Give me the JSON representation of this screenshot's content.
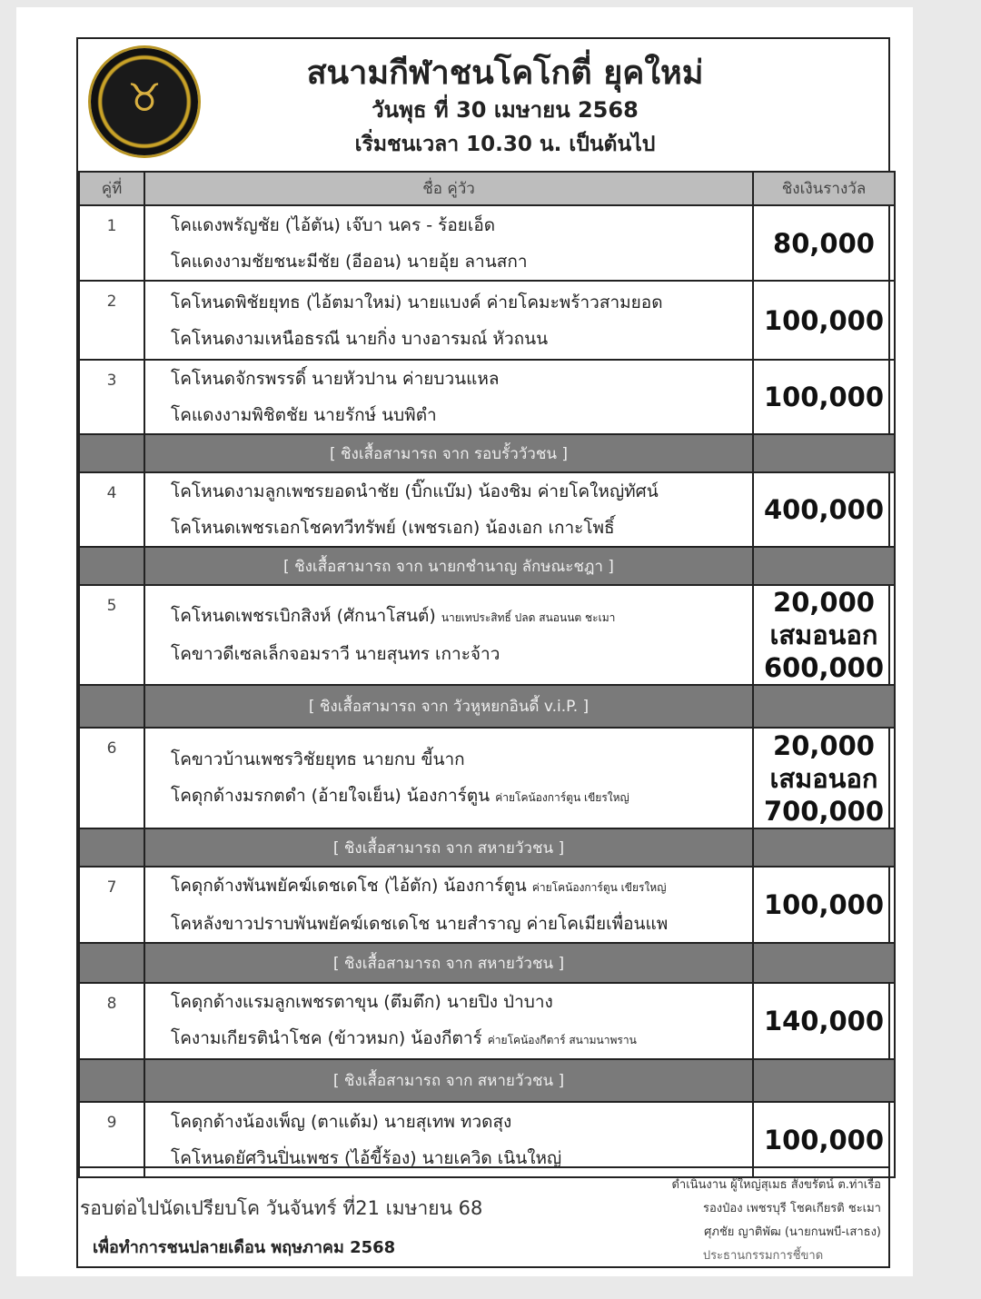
{
  "header": {
    "title": "สนามกีฬาชนโคโกตี่ ยุคใหม่",
    "date": "วันพุธ ที่ 30 เมษายน 2568",
    "time": "เริ่มชนเวลา 10.30 น. เป็นต้นไป"
  },
  "columns": {
    "no": "คู่ที่",
    "names": "ชื่อ คู่วัว",
    "prize": "ชิงเงินรางวัล"
  },
  "rows": [
    {
      "type": "match",
      "no": "1",
      "line1": "โคแดงพรัญชัย (ไอ้ตัน) เจ๊บา นคร - ร้อยเอ็ด",
      "line2": "โคแดงงามชัยชนะมีชัย (อีออน) นายอุ้ย ลานสกา",
      "prize": [
        "80,000"
      ]
    },
    {
      "type": "match",
      "no": "2",
      "line1": "โคโหนดพิชัยยุทธ (ไอ้ตมาใหม่) นายแบงค์ ค่ายโคมะพร้าวสามยอด",
      "line2": "โคโหนดงามเหนือธรณี นายกิ่ง บางอารมณ์ หัวถนน",
      "prize": [
        "100,000"
      ]
    },
    {
      "type": "match",
      "no": "3",
      "line1": "โคโหนดจักรพรรดิ์      นายหัวปาน ค่ายบวนแหล",
      "line2": "โคแดงงามพิชิตชัย       นายรักษ์ นบพิตำ",
      "prize": [
        "100,000"
      ]
    },
    {
      "type": "sponsor",
      "text": "[ ชิงเสื้อสามารถ จาก รอบรั้ววัวชน ]"
    },
    {
      "type": "match",
      "no": "4",
      "line1": "โคโหนดงามลูกเพชรยอดนำชัย (บิ๊กแบ๊ม) น้องชิม ค่ายโคใหญ่ทัศน์",
      "line2": "โคโหนดเพชรเอกโชคทวีทรัพย์ (เพชรเอก) น้องเอก เกาะโพธิ์",
      "prize": [
        "400,000"
      ]
    },
    {
      "type": "sponsor",
      "text": "[ ชิงเสื้อสามารถ จาก นายกชำนาญ ลักษณะชฎา ]"
    },
    {
      "type": "match",
      "no": "5",
      "line1": "โคโหนดเพชรเบิกสิงห์ (ศักนาโสนต์)",
      "line1_note": "นายเทประสิทธิ์ ปลด สนอนนต ชะเมา",
      "line2": "โคขาวดีเซลเล็กจอมราวี      นายสุนทร เกาะจ้าว",
      "prize": [
        "20,000",
        "เสมอนอก",
        "600,000"
      ]
    },
    {
      "type": "sponsor",
      "text": "[ ชิงเสื้อสามารถ จาก วัวหูหยกอินดี้ v.i.P. ]"
    },
    {
      "type": "match",
      "no": "6",
      "line1": "โคขาวบ้านเพชรวิชัยยุทธ นายกบ ขี้นาก",
      "line2": "โคดุกด้างมรกตดำ (อ้ายใจเย็น) น้องการ์ตูน",
      "line2_note": "ค่ายโคน้องการ์ตูน เขียรใหญ่",
      "prize": [
        "20,000",
        "เสมอนอก",
        "700,000"
      ]
    },
    {
      "type": "sponsor",
      "text": "[ ชิงเสื้อสามารถ จาก สหายวัวชน ]"
    },
    {
      "type": "match",
      "no": "7",
      "line1": "โคดุกด้างพันพยัคฆ์เดชเดโช (ไอ้ตัก) น้องการ์ตูน",
      "line1_note": "ค่ายโคน้องการ์ตูน เขียรใหญ่",
      "line2": "โคหลังขาวปราบพันพยัคฆ์เดชเดโช นายสำราญ ค่ายโคเมียเพื่อนแพ",
      "prize": [
        "100,000"
      ]
    },
    {
      "type": "sponsor",
      "text": "[ ชิงเสื้อสามารถ จาก สหายวัวชน ]"
    },
    {
      "type": "match",
      "no": "8",
      "line1": "โคดุกด้างแรมลูกเพชรตาขุน (ตึมตึก) นายปิง ป่าบาง",
      "line2": "โคงามเกียรตินำโชค (ข้าวหมก) น้องกีตาร์",
      "line2_note": "ค่ายโคน้องกีตาร์ สนามนาพราน",
      "prize": [
        "140,000"
      ]
    },
    {
      "type": "sponsor",
      "text": "[ ชิงเสื้อสามารถ จาก สหายวัวชน ]"
    },
    {
      "type": "match",
      "no": "9",
      "line1": "โคดุกด้างน้องเพ็ญ (ตาแต้ม)       นายสุเทพ ทวดสุง",
      "line2": "โคโหนดยัศวินปิ่นเพชร (ไอ้ขี้ร้อง) นายเควิด เนินใหญ่",
      "prize": [
        "100,000"
      ]
    }
  ],
  "footer": {
    "next_round": "รอบต่อไปนัดเปรียบโค วันจันทร์ ที่21 เมษายน 68",
    "purpose": "เพื่อทำการชนปลายเดือน พฤษภาคม 2568",
    "organizer_1": "ดำเนินงาน ผู้ใหญ่สุเมธ สังขรัตน์ ต.ท่าเรือ",
    "organizer_2": "รองป๋อง เพชรบุรี    โชคเกียรติ ชะเมา",
    "organizer_3": "ศุภชัย ญาติพัฒ (นายกนพบี-เสาธง)",
    "organizer_4": "ประธานกรรมการชี้ขาด"
  }
}
